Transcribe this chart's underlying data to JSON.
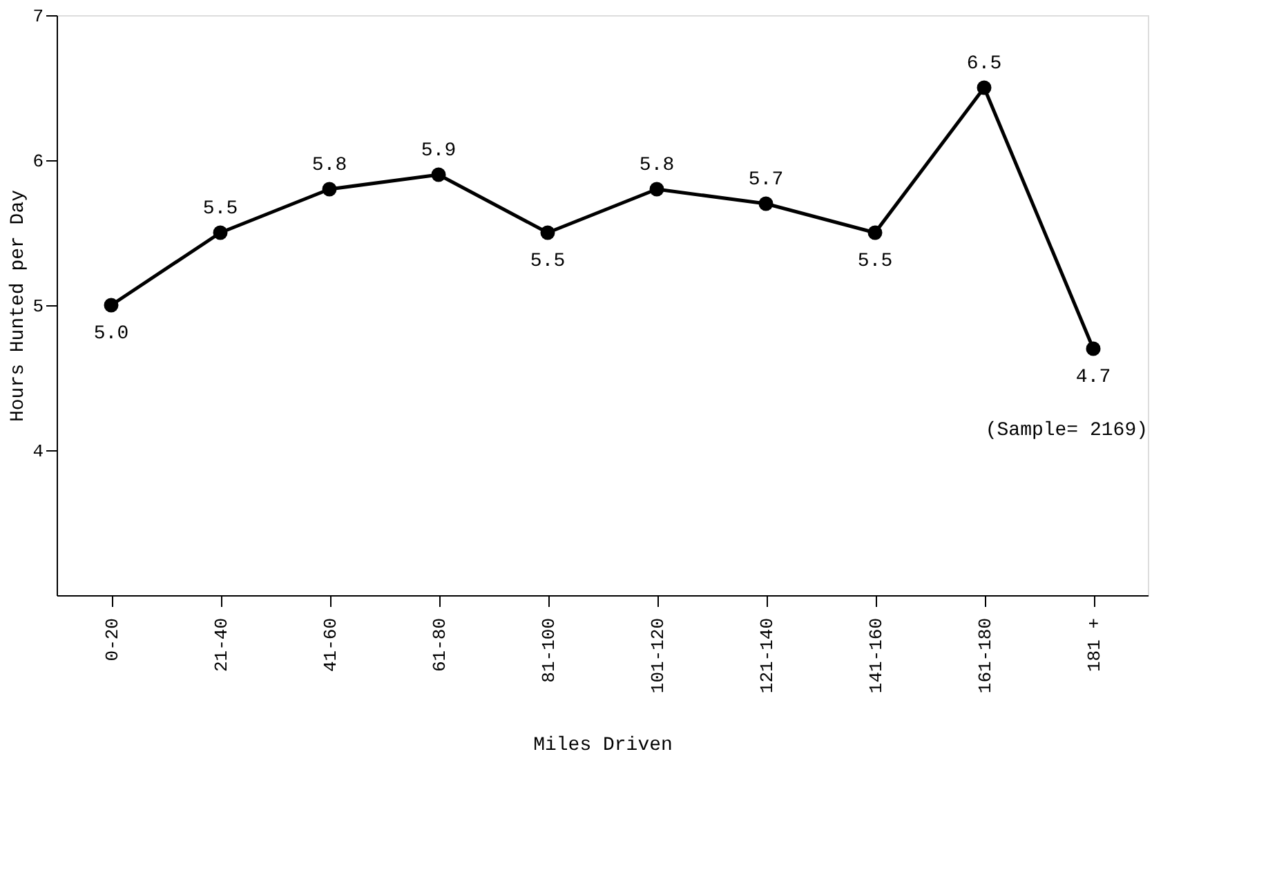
{
  "chart_data": {
    "type": "line",
    "xlabel": "Miles Driven",
    "ylabel": "Hours Hunted per Day",
    "categories": [
      "0-20",
      "21-40",
      "41-60",
      "61-80",
      "81-100",
      "101-120",
      "121-140",
      "141-160",
      "161-180",
      "181 +"
    ],
    "series": [
      {
        "color": "#000000",
        "values": [
          5.0,
          5.5,
          5.8,
          5.9,
          5.5,
          5.8,
          5.7,
          5.5,
          6.5,
          4.7
        ]
      }
    ],
    "value_labels": [
      "5.0",
      "5.5",
      "5.8",
      "5.9",
      "5.5",
      "5.8",
      "5.7",
      "5.5",
      "6.5",
      "4.7"
    ],
    "ylim": [
      3,
      7
    ],
    "yticks": [
      4,
      5,
      6,
      7
    ],
    "marker": "circle",
    "line_style": "solid",
    "grid": false,
    "annotations": [
      "(Sample= 2169)"
    ]
  }
}
